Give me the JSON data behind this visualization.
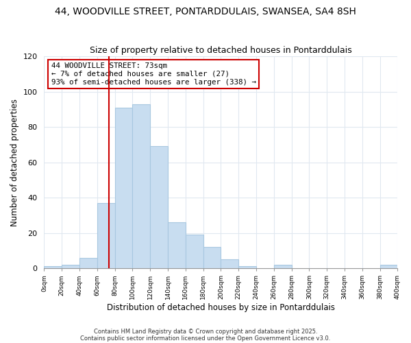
{
  "title1": "44, WOODVILLE STREET, PONTARDDULAIS, SWANSEA, SA4 8SH",
  "title2": "Size of property relative to detached houses in Pontarddulais",
  "xlabel": "Distribution of detached houses by size in Pontarddulais",
  "ylabel": "Number of detached properties",
  "bin_edges": [
    0,
    20,
    40,
    60,
    80,
    100,
    120,
    140,
    160,
    180,
    200,
    220,
    240,
    260,
    280,
    300,
    320,
    340,
    360,
    380,
    400
  ],
  "bar_heights": [
    1,
    2,
    6,
    37,
    91,
    93,
    69,
    26,
    19,
    12,
    5,
    1,
    0,
    2,
    0,
    0,
    0,
    0,
    0,
    2
  ],
  "bar_color": "#c8ddf0",
  "bar_edge_color": "#a8c8e0",
  "ylim": [
    0,
    120
  ],
  "yticks": [
    0,
    20,
    40,
    60,
    80,
    100,
    120
  ],
  "xtick_labels": [
    "0sqm",
    "20sqm",
    "40sqm",
    "60sqm",
    "80sqm",
    "100sqm",
    "120sqm",
    "140sqm",
    "160sqm",
    "180sqm",
    "200sqm",
    "220sqm",
    "240sqm",
    "260sqm",
    "280sqm",
    "300sqm",
    "320sqm",
    "340sqm",
    "360sqm",
    "380sqm",
    "400sqm"
  ],
  "vline_x": 73,
  "vline_color": "#cc0000",
  "annotation_text": "44 WOODVILLE STREET: 73sqm\n← 7% of detached houses are smaller (27)\n93% of semi-detached houses are larger (338) →",
  "annotation_box_edgecolor": "#cc0000",
  "footer1": "Contains HM Land Registry data © Crown copyright and database right 2025.",
  "footer2": "Contains public sector information licensed under the Open Government Licence v3.0.",
  "background_color": "#ffffff",
  "grid_color": "#e0e8f0",
  "title1_fontsize": 10,
  "title2_fontsize": 9
}
